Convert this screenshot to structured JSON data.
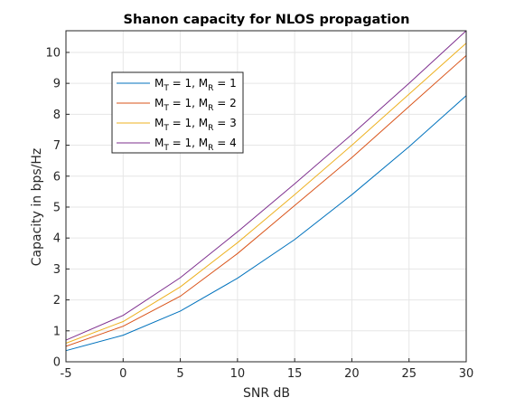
{
  "chart_data": {
    "type": "line",
    "title": "Shanon capacity for NLOS propagation",
    "xlabel": "SNR dB",
    "ylabel": "Capacity in bps/Hz",
    "xlim": [
      -5,
      30
    ],
    "ylim": [
      0,
      10.7
    ],
    "xticks": [
      -5,
      0,
      5,
      10,
      15,
      20,
      25,
      30
    ],
    "yticks": [
      0,
      1,
      2,
      3,
      4,
      5,
      6,
      7,
      8,
      9,
      10
    ],
    "grid": true,
    "legend_position": "upper-left",
    "x": [
      -5,
      0,
      5,
      10,
      15,
      20,
      25,
      30
    ],
    "series": [
      {
        "name_parts": [
          "M",
          "T",
          " = 1, M",
          "R",
          " = 1"
        ],
        "color": "#0072BD",
        "values": [
          0.36,
          0.86,
          1.64,
          2.7,
          3.95,
          5.4,
          6.95,
          8.6
        ]
      },
      {
        "name_parts": [
          "M",
          "T",
          " = 1, M",
          "R",
          " = 2"
        ],
        "color": "#D95319",
        "values": [
          0.5,
          1.15,
          2.12,
          3.5,
          5.05,
          6.6,
          8.25,
          9.9
        ]
      },
      {
        "name_parts": [
          "M",
          "T",
          " = 1, M",
          "R",
          " = 3"
        ],
        "color": "#EDB120",
        "values": [
          0.6,
          1.3,
          2.42,
          3.85,
          5.4,
          7.0,
          8.65,
          10.3
        ]
      },
      {
        "name_parts": [
          "M",
          "T",
          " = 1, M",
          "R",
          " = 4"
        ],
        "color": "#7E2F8E",
        "values": [
          0.7,
          1.5,
          2.72,
          4.2,
          5.75,
          7.35,
          9.0,
          10.7
        ]
      }
    ]
  }
}
